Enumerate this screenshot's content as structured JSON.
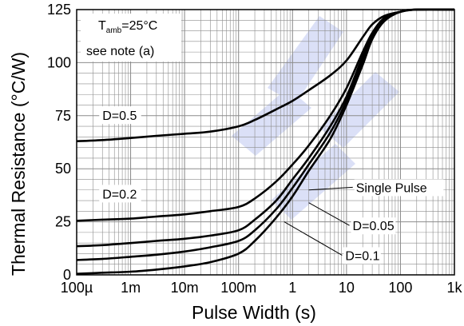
{
  "chart_data": {
    "type": "line",
    "title": "",
    "xlabel": "Pulse Width (s)",
    "ylabel": "Thermal Resistance (°C/W)",
    "xscale": "log",
    "xlim": [
      0.0001,
      1000
    ],
    "ylim": [
      0,
      125
    ],
    "grid": true,
    "x_ticks": [
      {
        "value": 0.0001,
        "label": "100µ"
      },
      {
        "value": 0.001,
        "label": "1m"
      },
      {
        "value": 0.01,
        "label": "10m"
      },
      {
        "value": 0.1,
        "label": "100m"
      },
      {
        "value": 1,
        "label": "1"
      },
      {
        "value": 10,
        "label": "10"
      },
      {
        "value": 100,
        "label": "100"
      },
      {
        "value": 1000,
        "label": "1k"
      }
    ],
    "y_ticks": [
      {
        "value": 0,
        "label": "0"
      },
      {
        "value": 25,
        "label": "25"
      },
      {
        "value": 50,
        "label": "50"
      },
      {
        "value": 75,
        "label": "75"
      },
      {
        "value": 100,
        "label": "100"
      },
      {
        "value": 125,
        "label": "125"
      }
    ],
    "condition": {
      "prefix": "T",
      "subscript": "amb",
      "suffix": "=25°C"
    },
    "note": "see note (a)",
    "series": [
      {
        "name": "D=0.5",
        "x": [
          0.0001,
          0.0003,
          0.001,
          0.003,
          0.01,
          0.03,
          0.1,
          0.2,
          0.5,
          1,
          2,
          5,
          10,
          20,
          30,
          50,
          100,
          200,
          1000
        ],
        "y": [
          63,
          63.5,
          64.5,
          65.5,
          66.5,
          67.5,
          70,
          73,
          78,
          82,
          87,
          94,
          101,
          112,
          118,
          122,
          124,
          125,
          125
        ]
      },
      {
        "name": "D=0.2",
        "x": [
          0.0001,
          0.0003,
          0.001,
          0.003,
          0.01,
          0.03,
          0.1,
          0.2,
          0.5,
          1,
          2,
          5,
          10,
          20,
          30,
          50,
          100,
          200,
          1000
        ],
        "y": [
          25.5,
          26,
          26.5,
          27.5,
          28.5,
          30,
          32,
          36,
          44,
          52,
          61,
          75,
          88,
          105,
          114,
          121,
          124,
          125,
          125
        ]
      },
      {
        "name": "",
        "x": [
          0.0001,
          0.0003,
          0.001,
          0.003,
          0.01,
          0.03,
          0.1,
          0.2,
          0.5,
          1,
          2,
          5,
          10,
          20,
          30,
          50,
          100,
          200,
          1000
        ],
        "y": [
          13.5,
          14,
          15,
          16,
          17,
          18.5,
          21,
          26,
          35,
          45,
          55,
          70,
          84,
          103,
          113,
          120.5,
          124,
          125,
          125
        ]
      },
      {
        "name": "",
        "x": [
          0.0001,
          0.0003,
          0.001,
          0.003,
          0.01,
          0.03,
          0.1,
          0.2,
          0.5,
          1,
          2,
          5,
          10,
          20,
          30,
          50,
          100,
          200,
          1000
        ],
        "y": [
          7,
          7.5,
          8.5,
          9.5,
          11,
          13,
          16,
          21,
          31,
          41,
          52,
          67,
          82,
          101,
          112,
          120,
          124,
          125,
          125
        ]
      },
      {
        "name": "",
        "x": [
          0.0001,
          0.0003,
          0.001,
          0.003,
          0.01,
          0.03,
          0.1,
          0.2,
          0.5,
          1,
          2,
          5,
          10,
          20,
          30,
          50,
          100,
          200,
          1000
        ],
        "y": [
          0.5,
          1,
          1.5,
          2.5,
          4,
          6,
          10,
          16,
          27,
          37,
          49,
          64,
          80,
          99,
          111,
          119.5,
          124,
          125,
          125
        ]
      }
    ],
    "annotations": [
      {
        "text": "D=0.5",
        "x": 0.0003,
        "y": 73
      },
      {
        "text": "D=0.2",
        "x": 0.0003,
        "y": 36
      },
      {
        "text": "Single Pulse",
        "label_x": 15,
        "label_y": 39,
        "target_x": 2,
        "target_y": 40
      },
      {
        "text": "D=0.05",
        "label_x": 13,
        "label_y": 21,
        "target_x": 2,
        "target_y": 34
      },
      {
        "text": "D=0.1",
        "label_x": 9.5,
        "label_y": 7,
        "target_x": 0.7,
        "target_y": 25
      }
    ]
  }
}
